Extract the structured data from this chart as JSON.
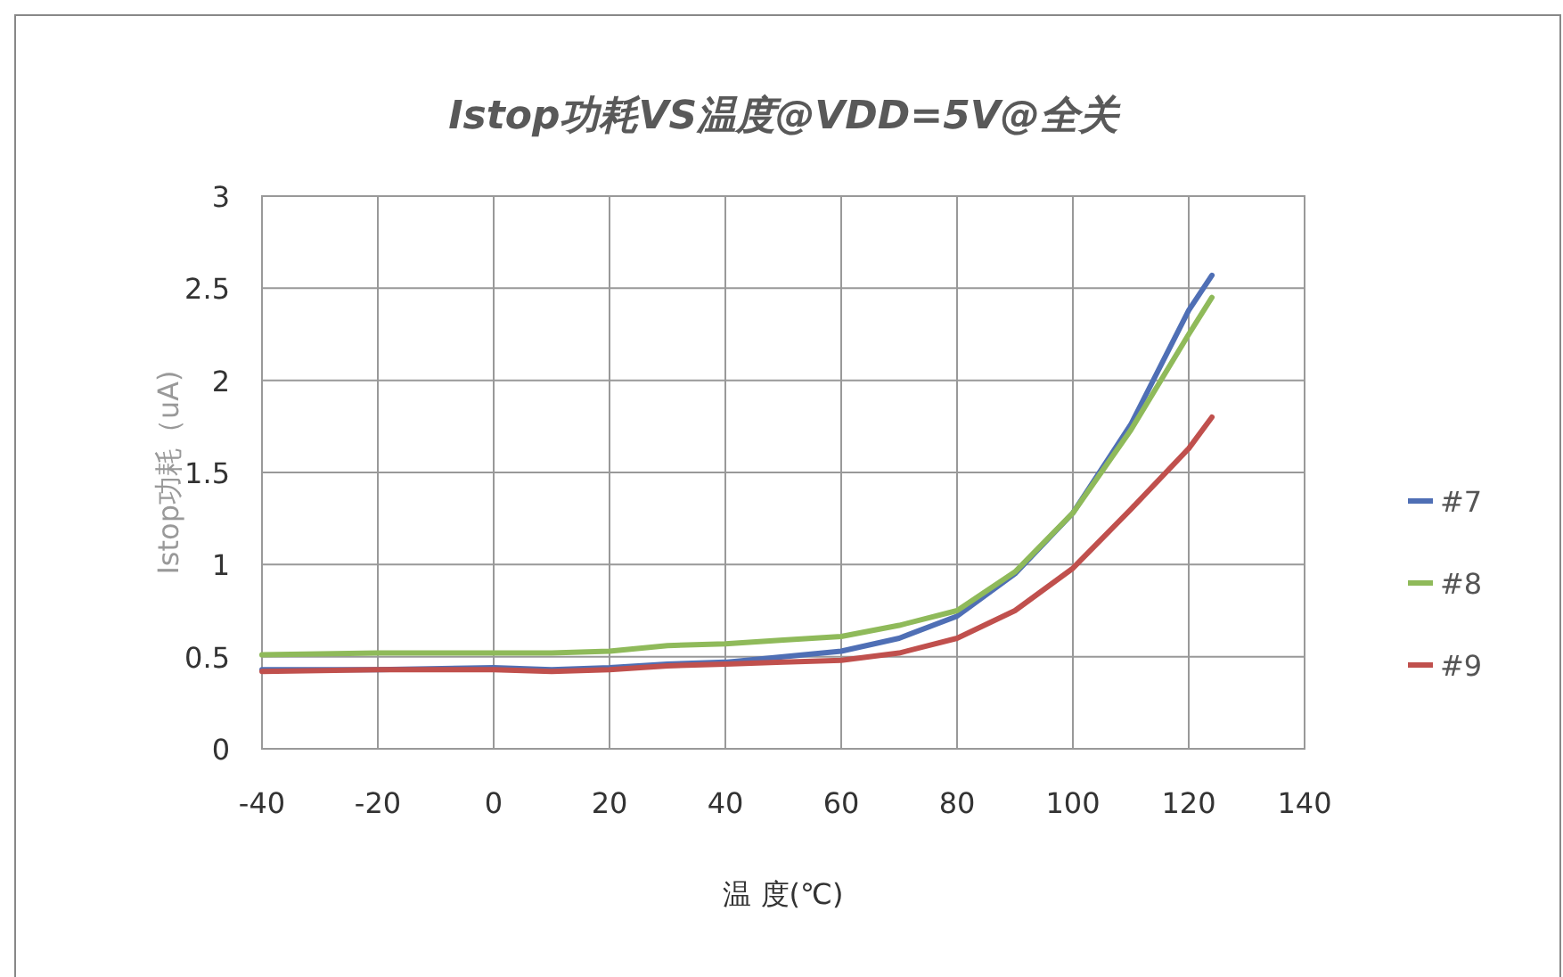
{
  "chart_data": {
    "type": "line",
    "title": "Istop功耗VS温度@VDD=5V@全关",
    "xlabel": "温 度(℃)",
    "ylabel": "Istop功耗（uA)",
    "xlim": [
      -40,
      140
    ],
    "xticks": [
      -40,
      -20,
      0,
      20,
      40,
      60,
      80,
      100,
      120,
      140
    ],
    "ylim": [
      0,
      3
    ],
    "yticks": [
      0,
      0.5,
      1,
      1.5,
      2,
      2.5,
      3
    ],
    "grid": true,
    "legend": "right",
    "marker": "none",
    "line_style": "solid",
    "series": [
      {
        "name": "#7",
        "color": "#4f6fb5",
        "x": [
          -40,
          -20,
          0,
          10,
          20,
          30,
          40,
          50,
          60,
          70,
          80,
          90,
          100,
          110,
          120,
          124
        ],
        "values": [
          0.43,
          0.43,
          0.44,
          0.43,
          0.44,
          0.46,
          0.47,
          0.5,
          0.53,
          0.6,
          0.72,
          0.95,
          1.28,
          1.76,
          2.38,
          2.57
        ]
      },
      {
        "name": "#8",
        "color": "#8fba5a",
        "x": [
          -40,
          -20,
          0,
          10,
          20,
          30,
          40,
          50,
          60,
          70,
          80,
          90,
          100,
          110,
          120,
          124
        ],
        "values": [
          0.51,
          0.52,
          0.52,
          0.52,
          0.53,
          0.56,
          0.57,
          0.59,
          0.61,
          0.67,
          0.75,
          0.96,
          1.28,
          1.73,
          2.25,
          2.45
        ]
      },
      {
        "name": "#9",
        "color": "#c0504d",
        "x": [
          -40,
          -20,
          0,
          10,
          20,
          30,
          40,
          50,
          60,
          70,
          80,
          90,
          100,
          110,
          120,
          124
        ],
        "values": [
          0.42,
          0.43,
          0.43,
          0.42,
          0.43,
          0.45,
          0.46,
          0.47,
          0.48,
          0.52,
          0.6,
          0.75,
          0.98,
          1.3,
          1.63,
          1.8
        ]
      }
    ]
  }
}
